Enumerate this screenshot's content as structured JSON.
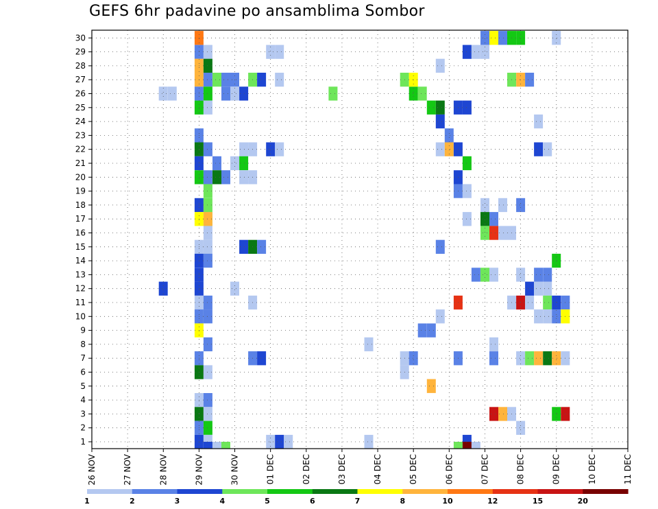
{
  "title": "GEFS 6hr padavine po ansamblima Sombor",
  "colors": {
    "c1": "#b4c8f0",
    "c2": "#5a82e6",
    "c3": "#1e46d2",
    "c4": "#6ee65a",
    "c5": "#14c814",
    "c6": "#0a7814",
    "c7": "#ffff00",
    "c8": "#ffb43c",
    "c10": "#ff7814",
    "c12": "#e63214",
    "c15": "#c81414",
    "c20": "#780000"
  },
  "chart_data": {
    "type": "heatmap",
    "title": "GEFS 6hr padavine po ansamblima Sombor",
    "x_labels": [
      "26 NOV",
      "27 NOV",
      "28 NOV",
      "29 NOV",
      "30 NOV",
      "01 DEC",
      "02 DEC",
      "03 DEC",
      "04 DEC",
      "05 DEC",
      "06 DEC",
      "07 DEC",
      "08 DEC",
      "09 DEC",
      "10 DEC",
      "11 DEC"
    ],
    "y_labels": [
      "1",
      "2",
      "3",
      "4",
      "5",
      "6",
      "7",
      "8",
      "9",
      "10",
      "11",
      "12",
      "13",
      "14",
      "15",
      "16",
      "17",
      "18",
      "19",
      "20",
      "21",
      "22",
      "23",
      "24",
      "25",
      "26",
      "27",
      "28",
      "29",
      "30"
    ],
    "x_unit": "6-hour steps from 26 NOV 00Z",
    "y_range": [
      1,
      30
    ],
    "grid": true,
    "colorbar": {
      "labels": [
        "1",
        "2",
        "3",
        "4",
        "5",
        "6",
        "7",
        "8",
        "10",
        "12",
        "15",
        "20"
      ],
      "colors": [
        "c1",
        "c2",
        "c3",
        "c4",
        "c5",
        "c6",
        "c7",
        "c8",
        "c10",
        "c12",
        "c15",
        "c20"
      ]
    },
    "cells": [
      [
        12,
        30,
        "c10"
      ],
      [
        12,
        29,
        "c2"
      ],
      [
        13,
        29,
        "c1"
      ],
      [
        12,
        28,
        "c8"
      ],
      [
        13,
        28,
        "c6"
      ],
      [
        12,
        27,
        "c8"
      ],
      [
        13,
        27,
        "c2"
      ],
      [
        14,
        27,
        "c4"
      ],
      [
        15,
        27,
        "c2"
      ],
      [
        16,
        27,
        "c2"
      ],
      [
        18,
        27,
        "c4"
      ],
      [
        19,
        27,
        "c3"
      ],
      [
        21,
        27,
        "c1"
      ],
      [
        12,
        26,
        "c2"
      ],
      [
        13,
        26,
        "c5"
      ],
      [
        15,
        26,
        "c2"
      ],
      [
        16,
        26,
        "c1"
      ],
      [
        17,
        26,
        "c3"
      ],
      [
        8,
        26,
        "c1"
      ],
      [
        9,
        26,
        "c1"
      ],
      [
        27,
        26,
        "c4"
      ],
      [
        36,
        26,
        "c5"
      ],
      [
        12,
        25,
        "c5"
      ],
      [
        13,
        25,
        "c1"
      ],
      [
        12,
        23,
        "c2"
      ],
      [
        12,
        22,
        "c6"
      ],
      [
        13,
        22,
        "c2"
      ],
      [
        17,
        22,
        "c1"
      ],
      [
        18,
        22,
        "c1"
      ],
      [
        20,
        22,
        "c3"
      ],
      [
        21,
        22,
        "c1"
      ],
      [
        12,
        21,
        "c3"
      ],
      [
        14,
        21,
        "c2"
      ],
      [
        16,
        21,
        "c1"
      ],
      [
        17,
        21,
        "c5"
      ],
      [
        12,
        20,
        "c5"
      ],
      [
        13,
        20,
        "c2"
      ],
      [
        14,
        20,
        "c6"
      ],
      [
        15,
        20,
        "c2"
      ],
      [
        17,
        20,
        "c1"
      ],
      [
        18,
        20,
        "c1"
      ],
      [
        13,
        19,
        "c4"
      ],
      [
        12,
        18,
        "c3"
      ],
      [
        13,
        18,
        "c4"
      ],
      [
        13,
        17,
        "c4"
      ],
      [
        12,
        17,
        "c7"
      ],
      [
        13,
        17,
        "c8"
      ],
      [
        13,
        16,
        "c1"
      ],
      [
        12,
        15,
        "c1"
      ],
      [
        13,
        15,
        "c1"
      ],
      [
        17,
        15,
        "c3"
      ],
      [
        18,
        15,
        "c6"
      ],
      [
        19,
        15,
        "c2"
      ],
      [
        12,
        14,
        "c3"
      ],
      [
        13,
        14,
        "c2"
      ],
      [
        12,
        13,
        "c3"
      ],
      [
        12,
        12,
        "c3"
      ],
      [
        8,
        12,
        "c3"
      ],
      [
        16,
        12,
        "c1"
      ],
      [
        12,
        11,
        "c1"
      ],
      [
        13,
        11,
        "c2"
      ],
      [
        18,
        11,
        "c1"
      ],
      [
        12,
        10,
        "c2"
      ],
      [
        13,
        10,
        "c2"
      ],
      [
        12,
        9,
        "c7"
      ],
      [
        13,
        8,
        "c2"
      ],
      [
        12,
        7,
        "c2"
      ],
      [
        18,
        7,
        "c2"
      ],
      [
        19,
        7,
        "c3"
      ],
      [
        12,
        6,
        "c6"
      ],
      [
        13,
        6,
        "c1"
      ],
      [
        12,
        4,
        "c1"
      ],
      [
        13,
        4,
        "c2"
      ],
      [
        12,
        3,
        "c6"
      ],
      [
        13,
        3,
        "c1"
      ],
      [
        12,
        2,
        "c2"
      ],
      [
        13,
        2,
        "c5"
      ],
      [
        12,
        1,
        "c3"
      ],
      [
        13,
        1,
        "c1"
      ],
      [
        20,
        1,
        "c1"
      ],
      [
        21,
        1,
        "c3"
      ],
      [
        22,
        1,
        "c1"
      ],
      [
        31,
        1,
        "c1"
      ],
      [
        13,
        0.5,
        "c3"
      ],
      [
        14,
        0.5,
        "c1"
      ],
      [
        15,
        0.5,
        "c4"
      ],
      [
        20,
        29,
        "c1"
      ],
      [
        21,
        29,
        "c1"
      ],
      [
        39,
        28,
        "c1"
      ],
      [
        35,
        27,
        "c4"
      ],
      [
        36,
        27,
        "c7"
      ],
      [
        37,
        26,
        "c4"
      ],
      [
        38,
        25,
        "c5"
      ],
      [
        39,
        25,
        "c6"
      ],
      [
        41,
        25,
        "c3"
      ],
      [
        42,
        25,
        "c3"
      ],
      [
        39,
        24,
        "c3"
      ],
      [
        40,
        23,
        "c2"
      ],
      [
        39,
        22,
        "c1"
      ],
      [
        40,
        22,
        "c8"
      ],
      [
        41,
        22,
        "c3"
      ],
      [
        42,
        21,
        "c5"
      ],
      [
        41,
        20,
        "c3"
      ],
      [
        41,
        19,
        "c2"
      ],
      [
        42,
        19,
        "c1"
      ],
      [
        44,
        18,
        "c1"
      ],
      [
        42,
        17,
        "c1"
      ],
      [
        44,
        17,
        "c6"
      ],
      [
        45,
        17,
        "c2"
      ],
      [
        39,
        15,
        "c2"
      ],
      [
        44,
        16,
        "c4"
      ],
      [
        45,
        16,
        "c12"
      ],
      [
        46,
        16,
        "c1"
      ],
      [
        47,
        16,
        "c1"
      ],
      [
        43,
        13,
        "c2"
      ],
      [
        44,
        13,
        "c4"
      ],
      [
        45,
        13,
        "c1"
      ],
      [
        48,
        13,
        "c1"
      ],
      [
        37,
        9,
        "c2"
      ],
      [
        38,
        9,
        "c2"
      ],
      [
        39,
        10,
        "c1"
      ],
      [
        41,
        11,
        "c12"
      ],
      [
        31,
        8,
        "c1"
      ],
      [
        35,
        7,
        "c1"
      ],
      [
        36,
        7,
        "c2"
      ],
      [
        35,
        6,
        "c1"
      ],
      [
        38,
        5,
        "c8"
      ],
      [
        41,
        7,
        "c2"
      ],
      [
        45,
        7,
        "c2"
      ],
      [
        45,
        8,
        "c1"
      ],
      [
        42,
        1,
        "c3"
      ],
      [
        41,
        0.5,
        "c4"
      ],
      [
        42,
        0.5,
        "c20"
      ],
      [
        43,
        0.5,
        "c1"
      ],
      [
        44,
        30,
        "c2"
      ],
      [
        45,
        30,
        "c7"
      ],
      [
        46,
        30,
        "c2"
      ],
      [
        47,
        30,
        "c5"
      ],
      [
        48,
        30,
        "c5"
      ],
      [
        52,
        30,
        "c1"
      ],
      [
        42,
        29,
        "c3"
      ],
      [
        43,
        29,
        "c1"
      ],
      [
        44,
        29,
        "c1"
      ],
      [
        47,
        27,
        "c4"
      ],
      [
        48,
        27,
        "c8"
      ],
      [
        49,
        27,
        "c2"
      ],
      [
        50,
        24,
        "c1"
      ],
      [
        46,
        18,
        "c1"
      ],
      [
        48,
        18,
        "c2"
      ],
      [
        50,
        22,
        "c3"
      ],
      [
        51,
        22,
        "c1"
      ],
      [
        47,
        11,
        "c1"
      ],
      [
        48,
        11,
        "c15"
      ],
      [
        49,
        11,
        "c1"
      ],
      [
        49,
        12,
        "c3"
      ],
      [
        50,
        12,
        "c1"
      ],
      [
        51,
        12,
        "c1"
      ],
      [
        51,
        11,
        "c4"
      ],
      [
        52,
        11,
        "c3"
      ],
      [
        53,
        11,
        "c2"
      ],
      [
        50,
        10,
        "c1"
      ],
      [
        51,
        10,
        "c1"
      ],
      [
        52,
        10,
        "c2"
      ],
      [
        53,
        10,
        "c7"
      ],
      [
        50,
        13,
        "c2"
      ],
      [
        51,
        13,
        "c2"
      ],
      [
        52,
        14,
        "c5"
      ],
      [
        48,
        7,
        "c1"
      ],
      [
        49,
        7,
        "c4"
      ],
      [
        50,
        7,
        "c8"
      ],
      [
        51,
        7,
        "c6"
      ],
      [
        52,
        7,
        "c8"
      ],
      [
        53,
        7,
        "c1"
      ],
      [
        48,
        2,
        "c1"
      ],
      [
        45,
        3,
        "c15"
      ],
      [
        46,
        3,
        "c8"
      ],
      [
        47,
        3,
        "c1"
      ],
      [
        52,
        3,
        "c5"
      ],
      [
        53,
        3,
        "c15"
      ]
    ]
  }
}
